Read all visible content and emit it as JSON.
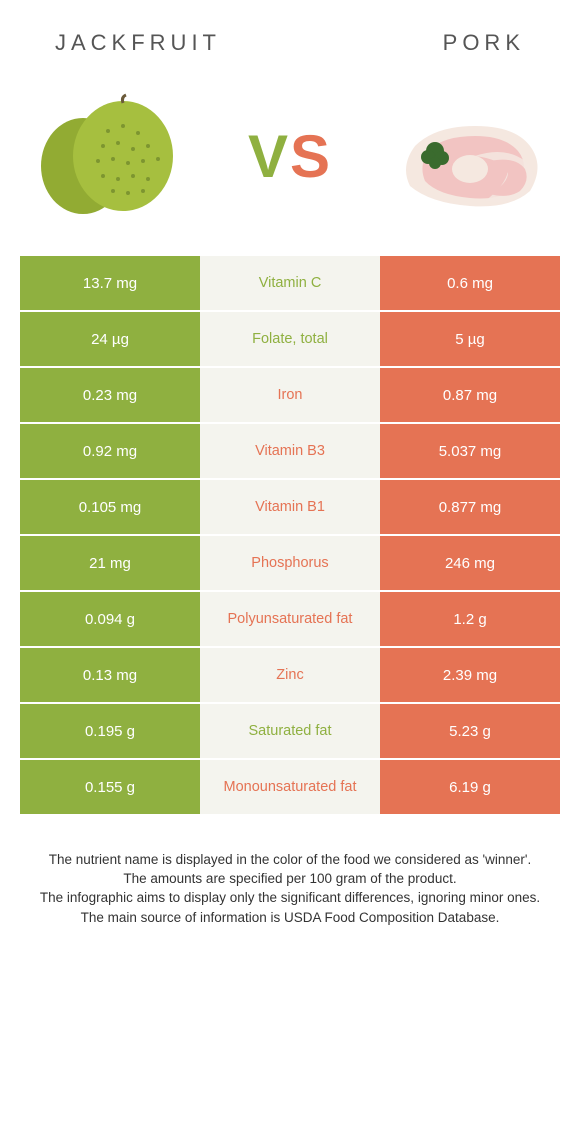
{
  "header": {
    "left_title": "JACKFRUIT",
    "right_title": "PORK",
    "vs_v": "V",
    "vs_s": "S"
  },
  "colors": {
    "left": "#8fb040",
    "right": "#e57354",
    "mid_bg": "#f4f4ee",
    "page_bg": "#ffffff"
  },
  "rows": [
    {
      "left": "13.7 mg",
      "label": "Vitamin C",
      "right": "0.6 mg",
      "winner": "left"
    },
    {
      "left": "24 µg",
      "label": "Folate, total",
      "right": "5 µg",
      "winner": "left"
    },
    {
      "left": "0.23 mg",
      "label": "Iron",
      "right": "0.87 mg",
      "winner": "right"
    },
    {
      "left": "0.92 mg",
      "label": "Vitamin B3",
      "right": "5.037 mg",
      "winner": "right"
    },
    {
      "left": "0.105 mg",
      "label": "Vitamin B1",
      "right": "0.877 mg",
      "winner": "right"
    },
    {
      "left": "21 mg",
      "label": "Phosphorus",
      "right": "246 mg",
      "winner": "right"
    },
    {
      "left": "0.094 g",
      "label": "Polyunsaturated fat",
      "right": "1.2 g",
      "winner": "right"
    },
    {
      "left": "0.13 mg",
      "label": "Zinc",
      "right": "2.39 mg",
      "winner": "right"
    },
    {
      "left": "0.195 g",
      "label": "Saturated fat",
      "right": "5.23 g",
      "winner": "left"
    },
    {
      "left": "0.155 g",
      "label": "Monounsaturated fat",
      "right": "6.19 g",
      "winner": "right"
    }
  ],
  "footnotes": [
    "The nutrient name is displayed in the color of the food we considered as 'winner'.",
    "The amounts are specified per 100 gram of the product.",
    "The infographic aims to display only the significant differences, ignoring minor ones.",
    "The main source of information is USDA Food Composition Database."
  ]
}
